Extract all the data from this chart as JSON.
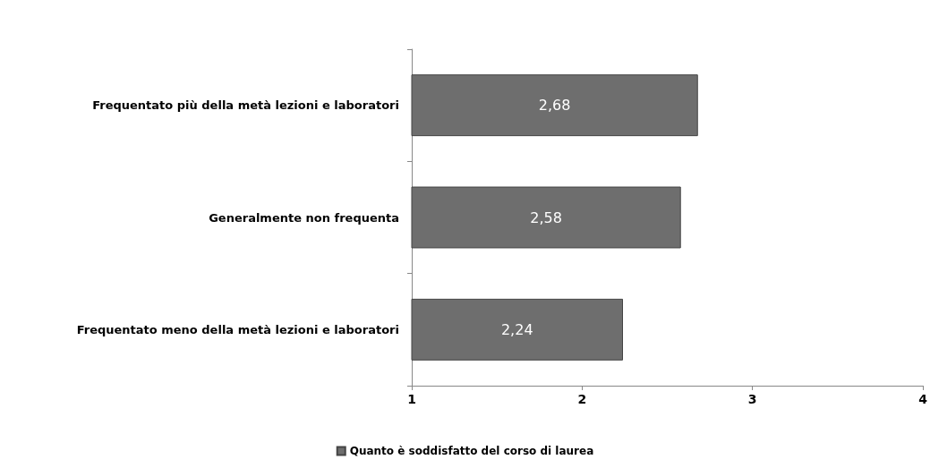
{
  "chart_data": {
    "type": "bar",
    "orientation": "horizontal",
    "categories": [
      "Frequentato più della metà lezioni e laboratori",
      "Generalmente non frequenta",
      "Frequentato meno della metà lezioni e laboratori"
    ],
    "series": [
      {
        "name": "Quanto è soddisfatto del corso di laurea",
        "color": "#6e6e6e",
        "values": [
          2.68,
          2.58,
          2.24
        ],
        "value_labels": [
          "2,68",
          "2,58",
          "2,24"
        ]
      }
    ],
    "xlim": [
      1,
      4
    ],
    "xticks": [
      1,
      2,
      3,
      4
    ],
    "grid": false,
    "legend": "bottom"
  }
}
